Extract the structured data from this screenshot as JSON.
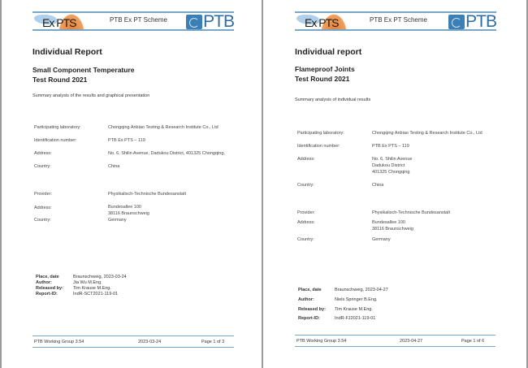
{
  "pages": [
    {
      "header": {
        "logo_left": "Ex PTS",
        "scheme": "PTB Ex PT Scheme",
        "logo_right": "PTB"
      },
      "title": "Individual Report",
      "subtitle_1": "Small Component Temperature",
      "subtitle_2": "Test Round 2021",
      "summary": "Summary analysis of the results and graphical presentation",
      "lab": {
        "label": "Participating laboratory:",
        "value": "Chongqing Anbiao Testing & Research Institute Co., Ltd"
      },
      "id": {
        "label": "Identification number:",
        "value": "PTB Ex PTS – 119"
      },
      "address": {
        "label": "Address:",
        "lines": [
          "No. 6, Shilin Avenue, Dadukou District, 401325 Chongqing,"
        ]
      },
      "country": {
        "label": "Country:",
        "value": "China"
      },
      "provider": {
        "label": "Provider:",
        "value": "Physikalisch-Technische Bundesanstalt"
      },
      "provider_address": {
        "label": "Address:",
        "lines": [
          "Bundesallee 100",
          "38116 Braunschweig"
        ]
      },
      "provider_country": {
        "label": "Country:",
        "value": "Germany"
      },
      "place": {
        "label": "Place, date",
        "value": "Braunschweig, 2023-03-24"
      },
      "author": {
        "label": "Author:",
        "value": "Jia Wu M.Eng."
      },
      "released": {
        "label": "Released by:",
        "value": "Tim Krause M.Eng."
      },
      "report_id": {
        "label": "Report-ID:",
        "value": "IndR-SCT2021-119-01"
      },
      "footer": {
        "group": "PTB Working Group 3.54",
        "date": "2023-03-24",
        "page": "Page 1 of 3"
      }
    },
    {
      "header": {
        "logo_left": "Ex PTS",
        "scheme": "PTB Ex PT Scheme",
        "logo_right": "PTB"
      },
      "title": "Individual report",
      "subtitle_1": "Flameproof Joints",
      "subtitle_2": "Test Round 2021",
      "summary": "Summary analysis of individual results",
      "lab": {
        "label": "Participating laboratory:",
        "value": "Chongqing Anbiao Testing & Research Institute Co., Ltd"
      },
      "id": {
        "label": "Identification number:",
        "value": "PTB Ex PTS – 119"
      },
      "address": {
        "label": "Address:",
        "lines": [
          "No. 6, Shilin Avenue",
          "Dadukou District",
          "401325 Chongqing"
        ]
      },
      "country": {
        "label": "Country:",
        "value": "China"
      },
      "provider": {
        "label": "Provider:",
        "value": "Physikalisch-Technische Bundesanstalt"
      },
      "provider_address": {
        "label": "Address:",
        "lines": [
          "Bundesallee 100",
          "38116 Braunschweig"
        ]
      },
      "provider_country": {
        "label": "Country:",
        "value": "Germany"
      },
      "place": {
        "label": "Place, date",
        "value": "Braunschweig, 2023-04-27"
      },
      "author": {
        "label": "Author:",
        "value": "Niels Springer B.Eng."
      },
      "released": {
        "label": "Released by:",
        "value": "Tim Krause M.Eng."
      },
      "report_id": {
        "label": "Report-ID:",
        "value": "IndR-FJ2021-119-01"
      },
      "footer": {
        "group": "PTB Working Group 3.54",
        "date": "2023-04-27",
        "page": "Page 1 of 6"
      }
    }
  ]
}
